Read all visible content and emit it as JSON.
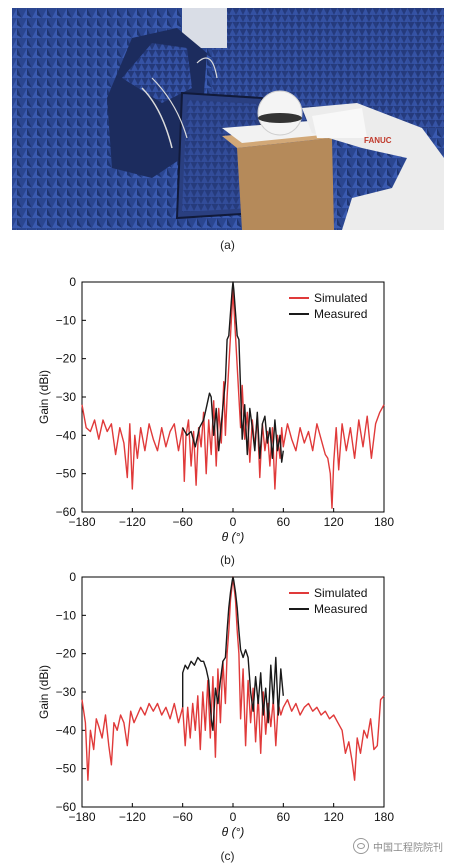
{
  "figure": {
    "panel_a_label": "(a)",
    "panel_b_label": "(b)",
    "panel_c_label": "(c)",
    "photo_brand_text": "FANUC"
  },
  "watermark": {
    "text": "中国工程院院刊"
  },
  "colors": {
    "simulated": "#e03a3a",
    "measured": "#1a1a1a",
    "absorber": "#2e4a9a",
    "robot": "#eeeeee"
  },
  "chart_data": [
    {
      "type": "line",
      "xlabel": "θ (°)",
      "ylabel": "Gain (dBi)",
      "xlim": [
        -180,
        180
      ],
      "ylim": [
        -60,
        0
      ],
      "xticks": [
        "−180",
        "−120",
        "−60",
        "0",
        "60",
        "120",
        "180"
      ],
      "yticks": [
        "0",
        "−10",
        "−20",
        "−30",
        "−40",
        "−50",
        "−60"
      ],
      "grid": false,
      "legend_position": "top-right",
      "series": [
        {
          "name": "Simulated",
          "color": "#e03a3a",
          "x": [
            -180,
            -175,
            -170,
            -165,
            -160,
            -155,
            -150,
            -145,
            -140,
            -135,
            -130,
            -126,
            -123,
            -120,
            -117,
            -114,
            -110,
            -105,
            -100,
            -95,
            -90,
            -85,
            -80,
            -75,
            -70,
            -65,
            -60,
            -58,
            -56,
            -53,
            -50,
            -47,
            -44,
            -41,
            -38,
            -35,
            -32,
            -29,
            -26,
            -23,
            -20,
            -17,
            -14,
            -11,
            -9,
            -7,
            -5,
            -3,
            -1,
            0,
            1,
            3,
            5,
            7,
            9,
            11,
            14,
            17,
            20,
            23,
            26,
            29,
            32,
            35,
            38,
            41,
            44,
            47,
            50,
            53,
            56,
            58,
            60,
            65,
            70,
            75,
            80,
            85,
            90,
            95,
            100,
            105,
            110,
            113,
            116,
            118,
            120,
            123,
            126,
            130,
            135,
            140,
            145,
            150,
            155,
            160,
            165,
            170,
            175,
            180
          ],
          "y": [
            -32,
            -38,
            -39,
            -36,
            -41,
            -36,
            -39,
            -37,
            -45,
            -38,
            -42,
            -51,
            -37,
            -54,
            -40,
            -46,
            -38,
            -44,
            -37,
            -41,
            -44,
            -38,
            -43,
            -39,
            -37,
            -44,
            -38,
            -52,
            -40,
            -36,
            -48,
            -39,
            -53,
            -38,
            -43,
            -34,
            -50,
            -36,
            -45,
            -31,
            -48,
            -33,
            -42,
            -26,
            -40,
            -30,
            -22,
            -14,
            -6,
            -2,
            -6,
            -14,
            -22,
            -30,
            -38,
            -27,
            -41,
            -34,
            -47,
            -36,
            -43,
            -35,
            -51,
            -37,
            -44,
            -39,
            -48,
            -38,
            -54,
            -40,
            -46,
            -38,
            -43,
            -37,
            -41,
            -44,
            -38,
            -42,
            -39,
            -44,
            -37,
            -41,
            -45,
            -46,
            -50,
            -59,
            -47,
            -38,
            -49,
            -37,
            -44,
            -38,
            -46,
            -36,
            -43,
            -35,
            -46,
            -37,
            -34,
            -32
          ]
        },
        {
          "name": "Measured",
          "color": "#1a1a1a",
          "x": [
            -60,
            -55,
            -50,
            -45,
            -40,
            -35,
            -31,
            -28,
            -26,
            -23,
            -20,
            -17,
            -14,
            -11,
            -9,
            -7,
            -5,
            -3,
            -1,
            0,
            1,
            3,
            5,
            7,
            9,
            11,
            14,
            17,
            20,
            23,
            26,
            29,
            32,
            35,
            38,
            41,
            44,
            47,
            50,
            53,
            56,
            58,
            60
          ],
          "y": [
            -38,
            -40,
            -39,
            -43,
            -38,
            -36,
            -32,
            -29,
            -30,
            -40,
            -33,
            -44,
            -37,
            -30,
            -26,
            -15,
            -14,
            -8,
            -2,
            0,
            -2,
            -8,
            -14,
            -15,
            -28,
            -41,
            -32,
            -45,
            -33,
            -38,
            -44,
            -34,
            -46,
            -37,
            -35,
            -42,
            -38,
            -46,
            -36,
            -44,
            -40,
            -47,
            -44
          ]
        }
      ]
    },
    {
      "type": "line",
      "xlabel": "θ (°)",
      "ylabel": "Gain (dBi)",
      "xlim": [
        -180,
        180
      ],
      "ylim": [
        -60,
        0
      ],
      "xticks": [
        "−180",
        "−120",
        "−60",
        "0",
        "60",
        "120",
        "180"
      ],
      "yticks": [
        "0",
        "−10",
        "−20",
        "−30",
        "−40",
        "−50",
        "−60"
      ],
      "grid": false,
      "legend_position": "top-right",
      "series": [
        {
          "name": "Simulated",
          "color": "#e03a3a",
          "x": [
            -180,
            -176,
            -173,
            -170,
            -166,
            -163,
            -160,
            -156,
            -152,
            -148,
            -145,
            -142,
            -138,
            -134,
            -130,
            -126,
            -122,
            -118,
            -114,
            -110,
            -105,
            -100,
            -95,
            -90,
            -85,
            -80,
            -75,
            -70,
            -65,
            -60,
            -57,
            -54,
            -51,
            -48,
            -45,
            -42,
            -39,
            -36,
            -33,
            -30,
            -27,
            -24,
            -21,
            -18,
            -15,
            -12,
            -9,
            -7,
            -5,
            -3,
            -1,
            0,
            1,
            3,
            5,
            7,
            9,
            12,
            15,
            18,
            21,
            24,
            27,
            30,
            33,
            36,
            39,
            42,
            45,
            48,
            51,
            54,
            57,
            60,
            65,
            70,
            75,
            80,
            85,
            90,
            95,
            100,
            105,
            110,
            115,
            120,
            125,
            130,
            134,
            138,
            142,
            145,
            148,
            152,
            156,
            160,
            164,
            168,
            172,
            176,
            180
          ],
          "y": [
            -32,
            -38,
            -53,
            -40,
            -45,
            -37,
            -39,
            -42,
            -36,
            -44,
            -49,
            -38,
            -40,
            -36,
            -38,
            -44,
            -35,
            -38,
            -36,
            -34,
            -36,
            -33,
            -35,
            -33,
            -36,
            -34,
            -37,
            -33,
            -38,
            -34,
            -44,
            -34,
            -42,
            -33,
            -40,
            -31,
            -45,
            -30,
            -40,
            -27,
            -42,
            -26,
            -47,
            -24,
            -38,
            -22,
            -33,
            -20,
            -14,
            -6,
            -2,
            0,
            -2,
            -6,
            -14,
            -20,
            -37,
            -24,
            -44,
            -27,
            -38,
            -29,
            -43,
            -31,
            -46,
            -30,
            -41,
            -33,
            -39,
            -32,
            -44,
            -33,
            -36,
            -34,
            -32,
            -35,
            -33,
            -36,
            -34,
            -33,
            -35,
            -34,
            -36,
            -35,
            -37,
            -36,
            -38,
            -40,
            -46,
            -43,
            -48,
            -53,
            -42,
            -46,
            -40,
            -42,
            -37,
            -45,
            -44,
            -32,
            -31
          ]
        },
        {
          "name": "Measured",
          "color": "#1a1a1a",
          "x": [
            -60,
            -60,
            -57,
            -54,
            -50,
            -46,
            -42,
            -38,
            -35,
            -32,
            -29,
            -26,
            -24,
            -21,
            -18,
            -15,
            -12,
            -9,
            -7,
            -5,
            -3,
            -1,
            0,
            1,
            3,
            5,
            7,
            9,
            12,
            15,
            18,
            21,
            24,
            27,
            30,
            33,
            36,
            39,
            42,
            45,
            48,
            51,
            54,
            57,
            60
          ],
          "y": [
            -34,
            -25,
            -23,
            -24,
            -22,
            -23,
            -21,
            -22,
            -22,
            -24,
            -27,
            -37,
            -40,
            -29,
            -33,
            -27,
            -22,
            -21,
            -14,
            -8,
            -4,
            -1,
            0,
            -1,
            -4,
            -8,
            -14,
            -19,
            -21,
            -19,
            -21,
            -30,
            -35,
            -26,
            -33,
            -25,
            -36,
            -29,
            -38,
            -23,
            -33,
            -21,
            -36,
            -24,
            -31
          ]
        }
      ]
    }
  ]
}
